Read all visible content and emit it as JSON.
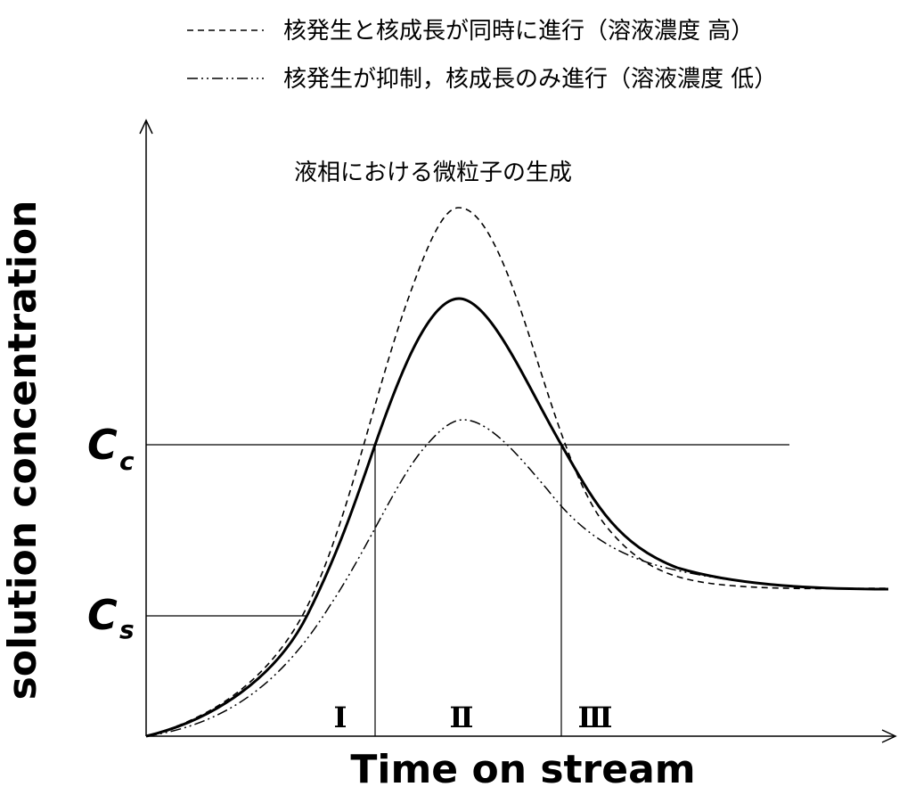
{
  "legend": {
    "items": [
      {
        "label": "核発生と核成長が同時に進行（溶液濃度 高）",
        "style": "dashed"
      },
      {
        "label": "核発生が抑制，核成長のみ進行（溶液濃度 低）",
        "style": "dash-dot-dot"
      }
    ]
  },
  "diagram": {
    "title": "液相における微粒子の生成",
    "x_axis_label": "Time on stream",
    "y_axis_label": "solution concentration",
    "levels": {
      "cc": {
        "main": "C",
        "sub": "c"
      },
      "cs": {
        "main": "C",
        "sub": "s"
      }
    },
    "regions": [
      "Ⅰ",
      "Ⅱ",
      "Ⅲ"
    ]
  }
}
